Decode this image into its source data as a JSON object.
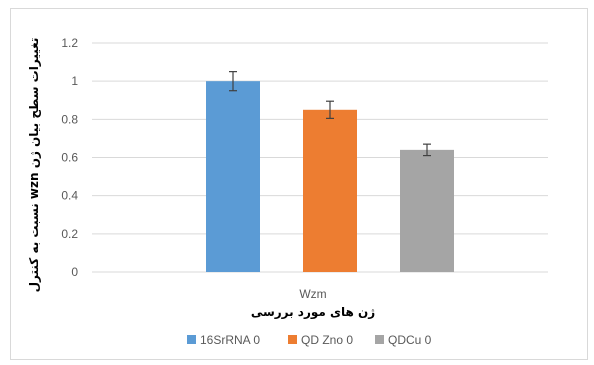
{
  "chart_data": {
    "type": "bar",
    "categories": [
      "Wzm"
    ],
    "xlabel": "ژن های مورد بررسی",
    "ylabel": "تغییرات سطح بیان ژن wzn نسبت به کنترل",
    "ylim": [
      0,
      1.2
    ],
    "yticks": [
      "0",
      "0.2",
      "0.4",
      "0.6",
      "0.8",
      "1",
      "1.2"
    ],
    "grid": true,
    "legend_position": "bottom",
    "series": [
      {
        "name": "16SrRNA 0",
        "values": [
          1.0
        ],
        "error": [
          0.05
        ],
        "color": "#5b9bd5"
      },
      {
        "name": "QD Zno 0",
        "values": [
          0.85
        ],
        "error": [
          0.045
        ],
        "color": "#ed7d31"
      },
      {
        "name": "QDCu 0",
        "values": [
          0.64
        ],
        "error": [
          0.03
        ],
        "color": "#a5a5a5"
      }
    ]
  }
}
